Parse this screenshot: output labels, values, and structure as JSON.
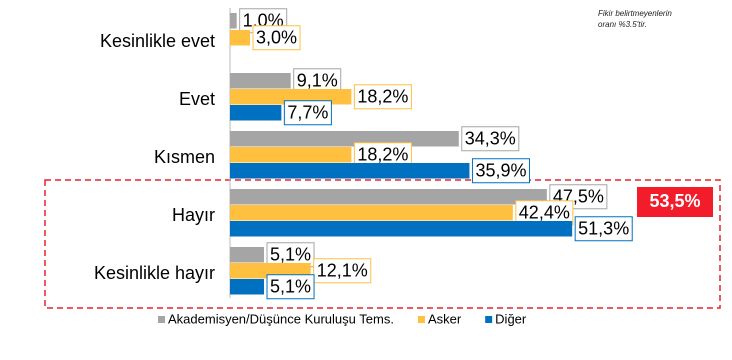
{
  "chart_data": {
    "type": "bar",
    "orientation": "horizontal",
    "categories": [
      "Kesinlikle evet",
      "Evet",
      "Kısmen",
      "Hayır",
      "Kesinlikle hayır"
    ],
    "series": [
      {
        "name": "Akademisyen/Düşünce Kuruluşu Tems.",
        "color": "#a5a5a5",
        "values": [
          1.0,
          9.1,
          34.3,
          47.5,
          5.1
        ],
        "value_labels": [
          "1,0%",
          "9,1%",
          "34,3%",
          "47,5%",
          "5,1%"
        ]
      },
      {
        "name": "Asker",
        "color": "#ffc040",
        "values": [
          3.0,
          18.2,
          18.2,
          42.4,
          12.1
        ],
        "value_labels": [
          "3,0%",
          "18,2%",
          "18,2%",
          "42,4%",
          "12,1%"
        ]
      },
      {
        "name": "Diğer",
        "color": "#0070c0",
        "values": [
          null,
          7.7,
          35.9,
          51.3,
          5.1
        ],
        "value_labels": [
          null,
          "7,7%",
          "35,9%",
          "51,3%",
          "5,1%"
        ]
      }
    ],
    "annotations": [
      "Fikir belirtmeyenlerin oranı %3.5'tir.",
      "53,5%"
    ]
  }
}
